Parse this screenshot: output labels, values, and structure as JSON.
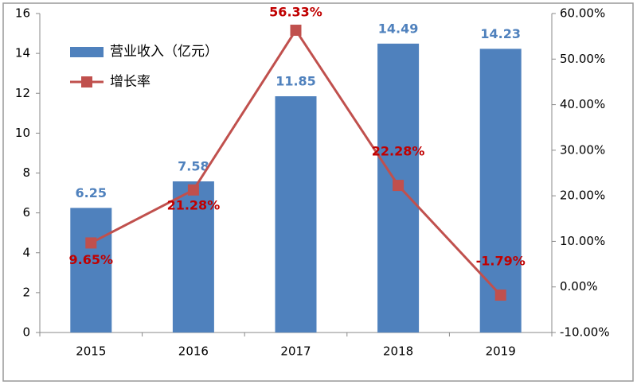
{
  "chart_data": {
    "type": "bar",
    "categories": [
      "2015",
      "2016",
      "2017",
      "2018",
      "2019"
    ],
    "series": [
      {
        "name": "营业收入（亿元）",
        "type": "bar",
        "color": "#4f81bd",
        "label_color": "#4f81bd",
        "values": [
          6.25,
          7.58,
          11.85,
          14.49,
          14.23
        ]
      },
      {
        "name": "增长率",
        "type": "line",
        "axis": "y2",
        "color": "#c0504d",
        "label_color": "#c00000",
        "values": [
          9.65,
          21.28,
          56.33,
          22.28,
          -1.79
        ],
        "value_labels": [
          "9.65%",
          "21.28%",
          "56.33%",
          "22.28%",
          "-1.79%"
        ]
      }
    ],
    "ylim": [
      0,
      16
    ],
    "yticks": [
      0,
      2,
      4,
      6,
      8,
      10,
      12,
      14,
      16
    ],
    "y2lim": [
      -10,
      60
    ],
    "y2ticks": [
      {
        "value": -10,
        "label": "-10.00%"
      },
      {
        "value": 0,
        "label": "0.00%"
      },
      {
        "value": 10,
        "label": "10.00%"
      },
      {
        "value": 20,
        "label": "20.00%"
      },
      {
        "value": 30,
        "label": "30.00%"
      },
      {
        "value": 40,
        "label": "40.00%"
      },
      {
        "value": 50,
        "label": "50.00%"
      },
      {
        "value": 60,
        "label": "60.00%"
      }
    ],
    "legend": "top-left"
  }
}
